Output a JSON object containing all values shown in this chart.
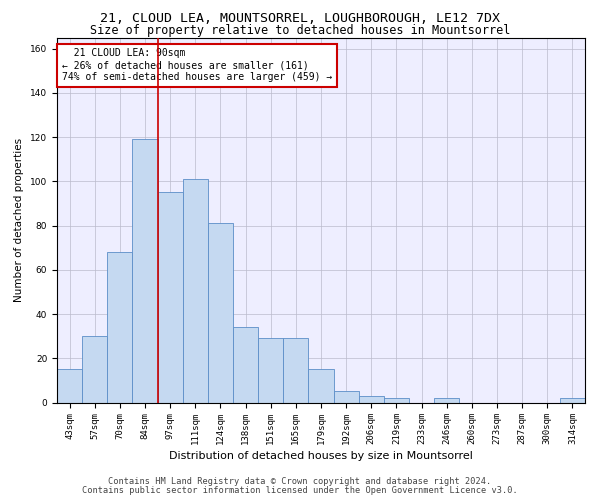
{
  "title": "21, CLOUD LEA, MOUNTSORREL, LOUGHBOROUGH, LE12 7DX",
  "subtitle": "Size of property relative to detached houses in Mountsorrel",
  "xlabel": "Distribution of detached houses by size in Mountsorrel",
  "ylabel": "Number of detached properties",
  "bar_color": "#c5d9f1",
  "bar_edge_color": "#5b8dc8",
  "bar_width": 1.0,
  "categories": [
    "43sqm",
    "57sqm",
    "70sqm",
    "84sqm",
    "97sqm",
    "111sqm",
    "124sqm",
    "138sqm",
    "151sqm",
    "165sqm",
    "179sqm",
    "192sqm",
    "206sqm",
    "219sqm",
    "233sqm",
    "246sqm",
    "260sqm",
    "273sqm",
    "287sqm",
    "300sqm",
    "314sqm"
  ],
  "values": [
    15,
    30,
    68,
    119,
    95,
    101,
    81,
    34,
    29,
    29,
    15,
    5,
    3,
    2,
    0,
    2,
    0,
    0,
    0,
    0,
    2
  ],
  "ylim": [
    0,
    165
  ],
  "yticks": [
    0,
    20,
    40,
    60,
    80,
    100,
    120,
    140,
    160
  ],
  "vline_x": 3.5,
  "vline_color": "#cc0000",
  "annotation_text": "  21 CLOUD LEA: 90sqm\n← 26% of detached houses are smaller (161)\n74% of semi-detached houses are larger (459) →",
  "annotation_box_color": "white",
  "annotation_box_edge": "#cc0000",
  "footer1": "Contains HM Land Registry data © Crown copyright and database right 2024.",
  "footer2": "Contains public sector information licensed under the Open Government Licence v3.0.",
  "background_color": "#eeeeff",
  "grid_color": "#bbbbcc",
  "title_fontsize": 9.5,
  "subtitle_fontsize": 8.5,
  "xlabel_fontsize": 8,
  "ylabel_fontsize": 7.5,
  "tick_fontsize": 6.5,
  "annotation_fontsize": 7,
  "footer_fontsize": 6.2
}
